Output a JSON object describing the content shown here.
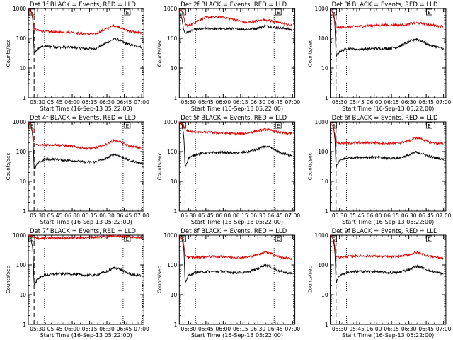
{
  "figure": {
    "ylabel": "Counts/sec",
    "xlabel": "Start Time (16-Sep-13 05:22:00)",
    "marker_labels": [
      "S",
      "E"
    ]
  },
  "colors": {
    "events": "#000000",
    "lld": "#e00000",
    "axis": "#000000"
  },
  "chart_data": [
    {
      "type": "line",
      "title": "Det 1f BLACK = Events, RED = LLD",
      "ylabel": "Counts/sec",
      "xlabel": "Start Time (16-Sep-13 05:22:00)",
      "x_ticks": [
        "05:30",
        "05:45",
        "06:00",
        "06:15",
        "06:30",
        "06:45",
        "07:00"
      ],
      "y_ticks": [
        "1",
        "10",
        "100",
        "1000"
      ],
      "y_scale": "log",
      "ylim": [
        1,
        1000
      ],
      "xlim": [
        "05:22",
        "07:02"
      ],
      "dashed_line": "05:27",
      "dotted_lines": [
        "05:36",
        "06:44",
        "07:01"
      ],
      "series": [
        {
          "color": "black",
          "x": [
            "05:24",
            "05:26",
            "05:27",
            "05:30",
            "05:36",
            "05:45",
            "06:00",
            "06:10",
            "06:20",
            "06:30",
            "06:36",
            "06:40",
            "06:45",
            "06:50",
            "06:55",
            "07:00"
          ],
          "values": [
            1000,
            400,
            30,
            45,
            55,
            50,
            50,
            45,
            45,
            70,
            95,
            90,
            70,
            60,
            55,
            50
          ]
        },
        {
          "color": "red",
          "x": [
            "05:22",
            "05:25",
            "05:27",
            "05:30",
            "05:36",
            "05:45",
            "06:00",
            "06:10",
            "06:20",
            "06:30",
            "06:36",
            "06:40",
            "06:45",
            "06:50",
            "06:55",
            "07:00"
          ],
          "values": [
            1000,
            700,
            220,
            180,
            170,
            160,
            160,
            140,
            140,
            210,
            270,
            250,
            200,
            170,
            160,
            150
          ]
        }
      ]
    },
    {
      "type": "line",
      "title": "Det 2f BLACK = Events, RED = LLD",
      "ylabel": "Counts/sec",
      "xlabel": "Start Time (16-Sep-13 05:22:00)",
      "x_ticks": [
        "05:30",
        "05:45",
        "06:00",
        "06:15",
        "06:30",
        "06:45",
        "07:00"
      ],
      "y_ticks": [
        "1",
        "10",
        "100",
        "1000"
      ],
      "y_scale": "log",
      "ylim": [
        1,
        1000
      ],
      "xlim": [
        "05:22",
        "07:02"
      ],
      "dashed_line": "05:27",
      "dotted_lines": [
        "05:36",
        "06:44",
        "07:01"
      ],
      "series": [
        {
          "color": "black",
          "x": [
            "05:22",
            "05:24",
            "05:26",
            "05:27",
            "05:30",
            "05:36",
            "05:45",
            "06:00",
            "06:10",
            "06:20",
            "06:30",
            "06:36",
            "06:45",
            "06:55",
            "07:00"
          ],
          "values": [
            1000,
            500,
            180,
            150,
            160,
            200,
            210,
            210,
            210,
            200,
            220,
            260,
            230,
            210,
            190
          ]
        },
        {
          "color": "red",
          "x": [
            "05:22",
            "05:25",
            "05:27",
            "05:30",
            "05:36",
            "05:45",
            "06:00",
            "06:10",
            "06:20",
            "06:30",
            "06:36",
            "06:45",
            "06:55",
            "07:00"
          ],
          "values": [
            1000,
            700,
            300,
            260,
            360,
            500,
            520,
            420,
            330,
            390,
            420,
            360,
            300,
            260
          ]
        }
      ]
    },
    {
      "type": "line",
      "title": "Det 3f BLACK = Events, RED = LLD",
      "ylabel": "Counts/sec",
      "xlabel": "Start Time (16-Sep-13 05:22:00)",
      "x_ticks": [
        "05:30",
        "05:45",
        "06:00",
        "06:15",
        "06:30",
        "06:45",
        "07:00"
      ],
      "y_ticks": [
        "1",
        "10",
        "100",
        "1000"
      ],
      "y_scale": "log",
      "ylim": [
        1,
        1000
      ],
      "xlim": [
        "05:22",
        "07:02"
      ],
      "dashed_line": "05:27",
      "dotted_lines": [
        "05:36",
        "06:44",
        "07:01"
      ],
      "series": [
        {
          "color": "black",
          "x": [
            "05:24",
            "05:26",
            "05:27",
            "05:30",
            "05:36",
            "05:45",
            "06:00",
            "06:10",
            "06:20",
            "06:30",
            "06:36",
            "06:40",
            "06:45",
            "06:50",
            "06:55",
            "07:00"
          ],
          "values": [
            1000,
            300,
            25,
            35,
            45,
            42,
            45,
            45,
            50,
            75,
            95,
            85,
            65,
            55,
            50,
            45
          ]
        },
        {
          "color": "red",
          "x": [
            "05:22",
            "05:25",
            "05:27",
            "05:30",
            "05:36",
            "05:45",
            "06:00",
            "06:10",
            "06:20",
            "06:30",
            "06:36",
            "06:40",
            "06:45",
            "06:50",
            "06:55",
            "07:00"
          ],
          "values": [
            1000,
            600,
            230,
            230,
            240,
            250,
            270,
            280,
            280,
            300,
            330,
            320,
            300,
            280,
            260,
            250
          ]
        }
      ]
    },
    {
      "type": "line",
      "title": "Det 4f BLACK = Events, RED = LLD",
      "ylabel": "Counts/sec",
      "xlabel": "Start Time (16-Sep-13 05:22:00)",
      "x_ticks": [
        "05:30",
        "05:45",
        "06:00",
        "06:15",
        "06:30",
        "06:45",
        "07:00"
      ],
      "y_ticks": [
        "1",
        "10",
        "100",
        "1000"
      ],
      "y_scale": "log",
      "ylim": [
        1,
        1000
      ],
      "xlim": [
        "05:22",
        "07:02"
      ],
      "dashed_line": "05:27",
      "dotted_lines": [
        "05:36",
        "06:44",
        "07:01"
      ],
      "series": [
        {
          "color": "black",
          "x": [
            "05:24",
            "05:26",
            "05:27",
            "05:30",
            "05:36",
            "05:45",
            "06:00",
            "06:10",
            "06:20",
            "06:30",
            "06:36",
            "06:40",
            "06:45",
            "06:50",
            "06:55",
            "07:00"
          ],
          "values": [
            1000,
            300,
            25,
            40,
            55,
            55,
            50,
            45,
            45,
            60,
            80,
            75,
            60,
            50,
            45,
            40
          ]
        },
        {
          "color": "red",
          "x": [
            "05:22",
            "05:25",
            "05:27",
            "05:30",
            "05:36",
            "05:45",
            "06:00",
            "06:10",
            "06:20",
            "06:30",
            "06:36",
            "06:40",
            "06:45",
            "06:50",
            "06:55",
            "07:00"
          ],
          "values": [
            1000,
            600,
            200,
            160,
            170,
            170,
            150,
            130,
            130,
            180,
            240,
            230,
            180,
            150,
            140,
            130
          ]
        }
      ]
    },
    {
      "type": "line",
      "title": "Det 5f BLACK = Events, RED = LLD",
      "ylabel": "Counts/sec",
      "xlabel": "Start Time (16-Sep-13 05:22:00)",
      "x_ticks": [
        "05:30",
        "05:45",
        "06:00",
        "06:15",
        "06:30",
        "06:45",
        "07:00"
      ],
      "y_ticks": [
        "1",
        "10",
        "100",
        "1000"
      ],
      "y_scale": "log",
      "ylim": [
        1,
        1000
      ],
      "xlim": [
        "05:22",
        "07:02"
      ],
      "dashed_line": "05:27",
      "dotted_lines": [
        "05:36",
        "06:44",
        "07:01"
      ],
      "series": [
        {
          "color": "black",
          "x": [
            "05:24",
            "05:26",
            "05:27",
            "05:30",
            "05:36",
            "05:45",
            "06:00",
            "06:10",
            "06:20",
            "06:30",
            "06:36",
            "06:40",
            "06:45",
            "06:50",
            "06:55",
            "07:00"
          ],
          "values": [
            1000,
            300,
            30,
            60,
            80,
            90,
            95,
            90,
            95,
            120,
            150,
            140,
            110,
            90,
            80,
            75
          ]
        },
        {
          "color": "red",
          "x": [
            "05:22",
            "05:25",
            "05:27",
            "05:30",
            "05:36",
            "05:45",
            "06:00",
            "06:10",
            "06:20",
            "06:30",
            "06:36",
            "06:40",
            "06:45",
            "06:50",
            "06:55",
            "07:00"
          ],
          "values": [
            1000,
            800,
            550,
            480,
            460,
            440,
            420,
            400,
            410,
            500,
            560,
            540,
            470,
            430,
            410,
            400
          ]
        }
      ]
    },
    {
      "type": "line",
      "title": "Det 6f BLACK = Events, RED = LLD",
      "ylabel": "Counts/sec",
      "xlabel": "Start Time (16-Sep-13 05:22:00)",
      "x_ticks": [
        "05:30",
        "05:45",
        "06:00",
        "06:15",
        "06:30",
        "06:45",
        "07:00"
      ],
      "y_ticks": [
        "1",
        "10",
        "100",
        "1000"
      ],
      "y_scale": "log",
      "ylim": [
        1,
        1000
      ],
      "xlim": [
        "05:22",
        "07:02"
      ],
      "dashed_line": "05:27",
      "dotted_lines": [
        "05:36",
        "06:44",
        "07:01"
      ],
      "series": [
        {
          "color": "black",
          "x": [
            "05:24",
            "05:26",
            "05:27",
            "05:30",
            "05:36",
            "05:45",
            "06:00",
            "06:10",
            "06:20",
            "06:30",
            "06:36",
            "06:40",
            "06:45",
            "06:50",
            "06:55",
            "07:00"
          ],
          "values": [
            1000,
            300,
            30,
            50,
            60,
            65,
            65,
            60,
            60,
            75,
            95,
            90,
            75,
            65,
            60,
            55
          ]
        },
        {
          "color": "red",
          "x": [
            "05:22",
            "05:25",
            "05:27",
            "05:30",
            "05:36",
            "05:45",
            "06:00",
            "06:10",
            "06:20",
            "06:30",
            "06:36",
            "06:40",
            "06:45",
            "06:50",
            "06:55",
            "07:00"
          ],
          "values": [
            1000,
            600,
            220,
            190,
            190,
            200,
            200,
            190,
            190,
            230,
            290,
            280,
            230,
            200,
            190,
            180
          ]
        }
      ]
    },
    {
      "type": "line",
      "title": "Det 7f BLACK = Events, RED = LLD",
      "ylabel": "Counts/sec",
      "xlabel": "Start Time (16-Sep-13 05:22:00)",
      "x_ticks": [
        "05:30",
        "05:45",
        "06:00",
        "06:15",
        "06:30",
        "06:45",
        "07:00"
      ],
      "y_ticks": [
        "1",
        "10",
        "100",
        "1000"
      ],
      "y_scale": "log",
      "ylim": [
        1,
        1000
      ],
      "xlim": [
        "05:22",
        "07:02"
      ],
      "dashed_line": "05:27",
      "dotted_lines": [
        "05:36",
        "06:44",
        "07:01"
      ],
      "series": [
        {
          "color": "black",
          "x": [
            "05:24",
            "05:26",
            "05:27",
            "05:30",
            "05:36",
            "05:45",
            "06:00",
            "06:10",
            "06:20",
            "06:30",
            "06:36",
            "06:40",
            "06:45",
            "06:50",
            "06:55",
            "07:00"
          ],
          "values": [
            1000,
            300,
            20,
            35,
            45,
            50,
            50,
            45,
            45,
            60,
            80,
            75,
            60,
            50,
            45,
            45
          ]
        },
        {
          "color": "red",
          "x": [
            "05:22",
            "05:25",
            "05:27",
            "05:30",
            "05:36",
            "05:45",
            "06:00",
            "06:10",
            "06:20",
            "06:30",
            "06:36",
            "06:40",
            "06:45",
            "06:50",
            "06:55",
            "07:00"
          ],
          "values": [
            1000,
            900,
            800,
            780,
            790,
            800,
            820,
            830,
            850,
            900,
            950,
            930,
            900,
            880,
            870,
            860
          ]
        }
      ]
    },
    {
      "type": "line",
      "title": "Det 8f BLACK = Events, RED = LLD",
      "ylabel": "Counts/sec",
      "xlabel": "Start Time (16-Sep-13 05:22:00)",
      "x_ticks": [
        "05:30",
        "05:45",
        "06:00",
        "06:15",
        "06:30",
        "06:45",
        "07:00"
      ],
      "y_ticks": [
        "1",
        "10",
        "100",
        "1000"
      ],
      "y_scale": "log",
      "ylim": [
        1,
        1000
      ],
      "xlim": [
        "05:22",
        "07:02"
      ],
      "dashed_line": "05:27",
      "dotted_lines": [
        "05:36",
        "06:44",
        "07:01"
      ],
      "series": [
        {
          "color": "black",
          "x": [
            "05:24",
            "05:26",
            "05:27",
            "05:30",
            "05:36",
            "05:45",
            "06:00",
            "06:10",
            "06:20",
            "06:30",
            "06:36",
            "06:40",
            "06:45",
            "06:50",
            "06:55",
            "07:00"
          ],
          "values": [
            1000,
            300,
            25,
            45,
            55,
            60,
            60,
            55,
            55,
            75,
            100,
            90,
            70,
            60,
            55,
            50
          ]
        },
        {
          "color": "red",
          "x": [
            "05:22",
            "05:25",
            "05:27",
            "05:30",
            "05:36",
            "05:45",
            "06:00",
            "06:10",
            "06:20",
            "06:30",
            "06:36",
            "06:40",
            "06:45",
            "06:50",
            "06:55",
            "07:00"
          ],
          "values": [
            1000,
            700,
            220,
            180,
            180,
            190,
            190,
            180,
            180,
            220,
            270,
            260,
            210,
            180,
            170,
            160
          ]
        }
      ]
    },
    {
      "type": "line",
      "title": "Det 9f BLACK = Events, RED = LLD",
      "ylabel": "Counts/sec",
      "xlabel": "Start Time (16-Sep-13 05:22:00)",
      "x_ticks": [
        "05:30",
        "05:45",
        "06:00",
        "06:15",
        "06:30",
        "06:45",
        "07:00"
      ],
      "y_ticks": [
        "1",
        "10",
        "100",
        "1000"
      ],
      "y_scale": "log",
      "ylim": [
        1,
        1000
      ],
      "xlim": [
        "05:22",
        "07:02"
      ],
      "dashed_line": "05:27",
      "dotted_lines": [
        "05:36",
        "06:44",
        "07:01"
      ],
      "series": [
        {
          "color": "black",
          "x": [
            "05:24",
            "05:26",
            "05:27",
            "05:30",
            "05:36",
            "05:45",
            "06:00",
            "06:10",
            "06:20",
            "06:30",
            "06:36",
            "06:40",
            "06:45",
            "06:50",
            "06:55",
            "07:00"
          ],
          "values": [
            1000,
            300,
            25,
            45,
            55,
            60,
            60,
            55,
            55,
            70,
            90,
            85,
            70,
            60,
            55,
            50
          ]
        },
        {
          "color": "red",
          "x": [
            "05:22",
            "05:25",
            "05:27",
            "05:30",
            "05:36",
            "05:45",
            "06:00",
            "06:10",
            "06:20",
            "06:30",
            "06:36",
            "06:40",
            "06:45",
            "06:50",
            "06:55",
            "07:00"
          ],
          "values": [
            1000,
            700,
            210,
            180,
            190,
            200,
            200,
            190,
            190,
            220,
            260,
            250,
            210,
            190,
            180,
            170
          ]
        }
      ]
    }
  ]
}
